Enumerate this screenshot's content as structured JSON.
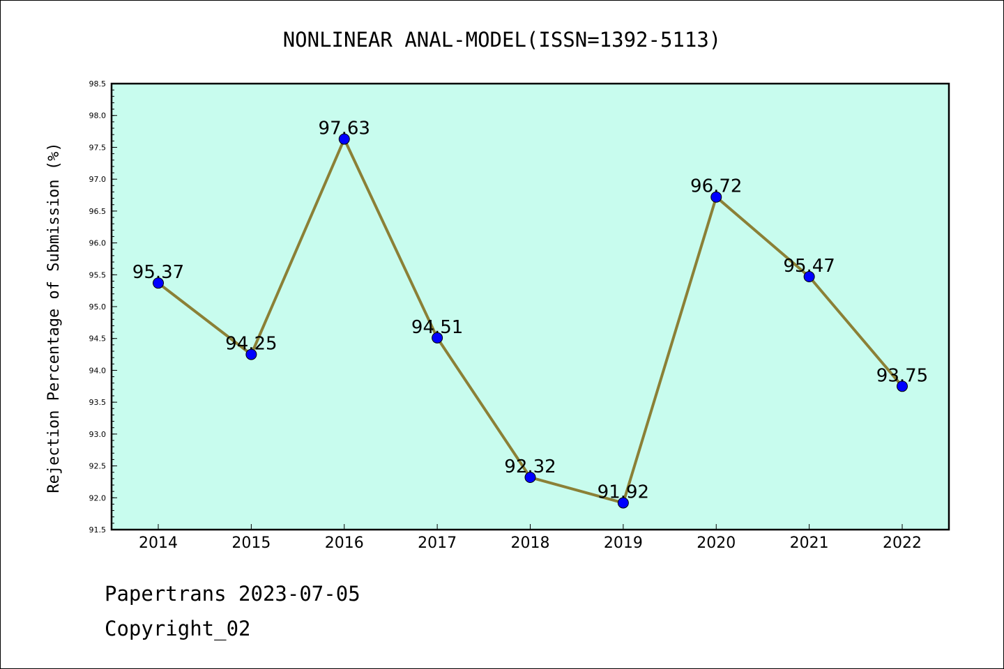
{
  "chart_data": {
    "type": "line",
    "title": "NONLINEAR ANAL-MODEL(ISSN=1392-5113)",
    "xlabel": "",
    "ylabel": "Rejection Percentage of Submission (%)",
    "categories": [
      "2014",
      "2015",
      "2016",
      "2017",
      "2018",
      "2019",
      "2020",
      "2021",
      "2022"
    ],
    "series": [
      {
        "values": [
          95.37,
          94.25,
          97.63,
          94.51,
          92.32,
          91.92,
          96.72,
          95.47,
          93.75
        ],
        "data_labels": [
          "95.37",
          "94.25",
          "97.63",
          "94.51",
          "92.32",
          "91.92",
          "96.72",
          "95.47",
          "93.75"
        ],
        "line_color": "#8b8036",
        "marker_color": "#0000ff"
      }
    ],
    "ylim": [
      91.5,
      98.5
    ],
    "y_ticks": [
      "91.5",
      "92.0",
      "92.5",
      "93.0",
      "93.5",
      "94.0",
      "94.5",
      "95.0",
      "95.5",
      "96.0",
      "96.5",
      "97.0",
      "97.5",
      "98.0",
      "98.5"
    ],
    "plot_background": "#c8fcee",
    "grid": false,
    "legend": "none"
  },
  "footer": {
    "line1": "Papertrans 2023-07-05",
    "line2": "Copyright_02"
  }
}
